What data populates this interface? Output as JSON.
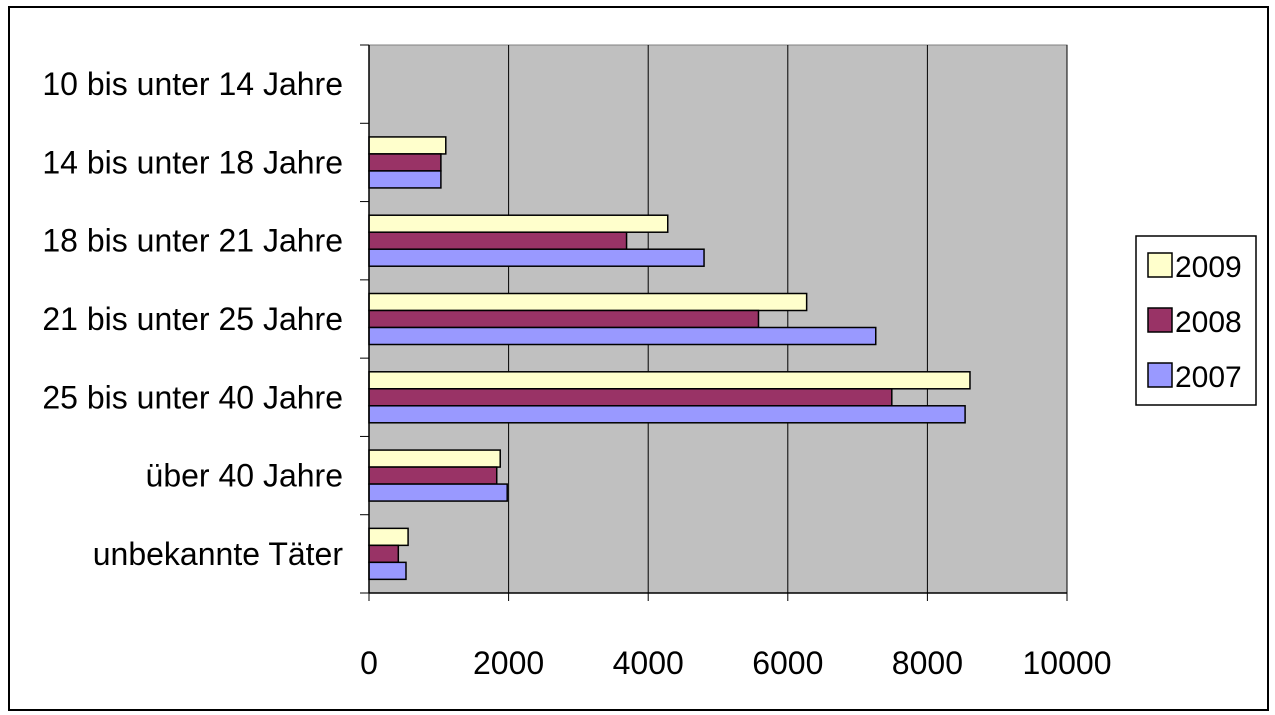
{
  "chart_data": {
    "type": "bar",
    "orientation": "horizontal",
    "categories": [
      "10 bis unter 14 Jahre",
      "14 bis unter 18 Jahre",
      "18 bis unter 21 Jahre",
      "21 bis unter 25 Jahre",
      "25 bis unter 40 Jahre",
      "über 40 Jahre",
      "unbekannte Täter"
    ],
    "series": [
      {
        "name": "2009",
        "color": "#ffffcc",
        "values": [
          0,
          1100,
          4280,
          6270,
          8610,
          1880,
          560
        ]
      },
      {
        "name": "2008",
        "color": "#993366",
        "values": [
          0,
          1030,
          3690,
          5580,
          7490,
          1830,
          420
        ]
      },
      {
        "name": "2007",
        "color": "#9999ff",
        "values": [
          0,
          1030,
          4800,
          7260,
          8540,
          1980,
          530
        ]
      }
    ],
    "xlim": [
      0,
      10000
    ],
    "xticks": [
      "0",
      "2000",
      "4000",
      "6000",
      "8000",
      "10000"
    ],
    "grid": true,
    "plot_background": "#c0c0c0",
    "legend_position": "right",
    "title": "",
    "xlabel": "",
    "ylabel": ""
  }
}
